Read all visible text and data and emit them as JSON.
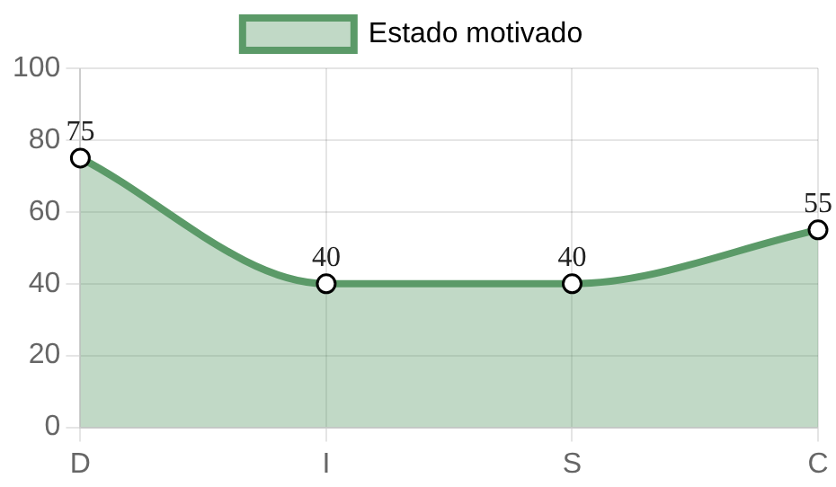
{
  "chart_data": {
    "type": "area",
    "categories": [
      "D",
      "I",
      "S",
      "C"
    ],
    "series": [
      {
        "name": "Estado motivado",
        "color": "#5b9a68",
        "values": [
          75,
          40,
          40,
          55
        ]
      }
    ],
    "ylim": [
      0,
      100
    ],
    "yticks": [
      0,
      20,
      40,
      60,
      80,
      100
    ],
    "grid": true,
    "legend": "top",
    "marker": "circle",
    "data_labels": true
  }
}
